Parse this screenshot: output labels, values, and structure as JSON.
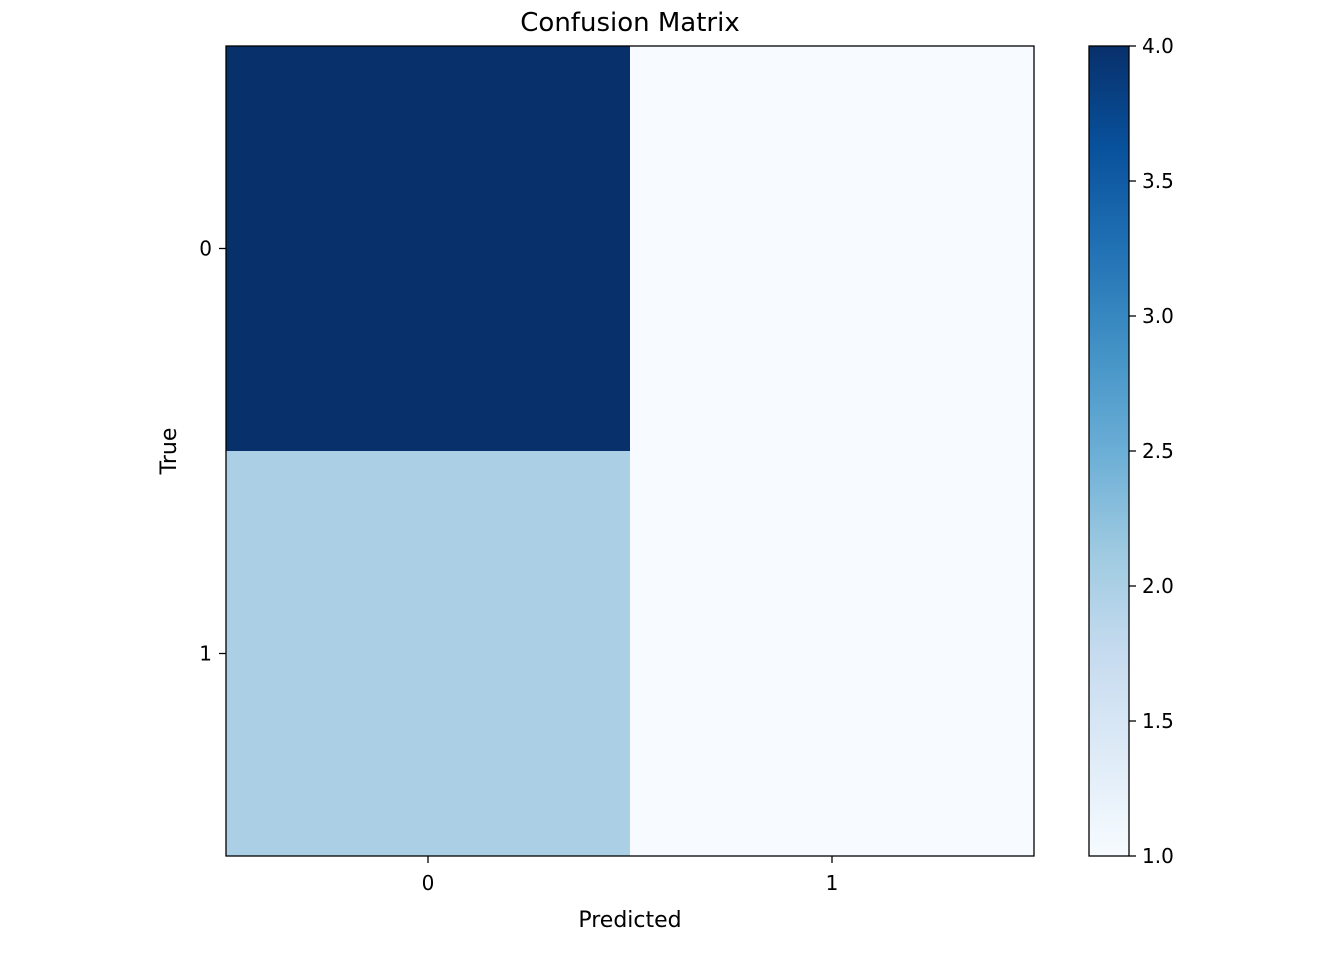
{
  "chart_data": {
    "type": "heatmap",
    "title": "Confusion Matrix",
    "xlabel": "Predicted",
    "ylabel": "True",
    "x_categories": [
      "0",
      "1"
    ],
    "y_categories": [
      "0",
      "1"
    ],
    "values": [
      [
        4,
        1
      ],
      [
        2,
        1
      ]
    ],
    "colormap": "Blues",
    "colorbar": {
      "min": 1.0,
      "max": 4.0,
      "ticks": [
        "1.0",
        "1.5",
        "2.0",
        "2.5",
        "3.0",
        "3.5",
        "4.0"
      ]
    },
    "grid": false
  }
}
